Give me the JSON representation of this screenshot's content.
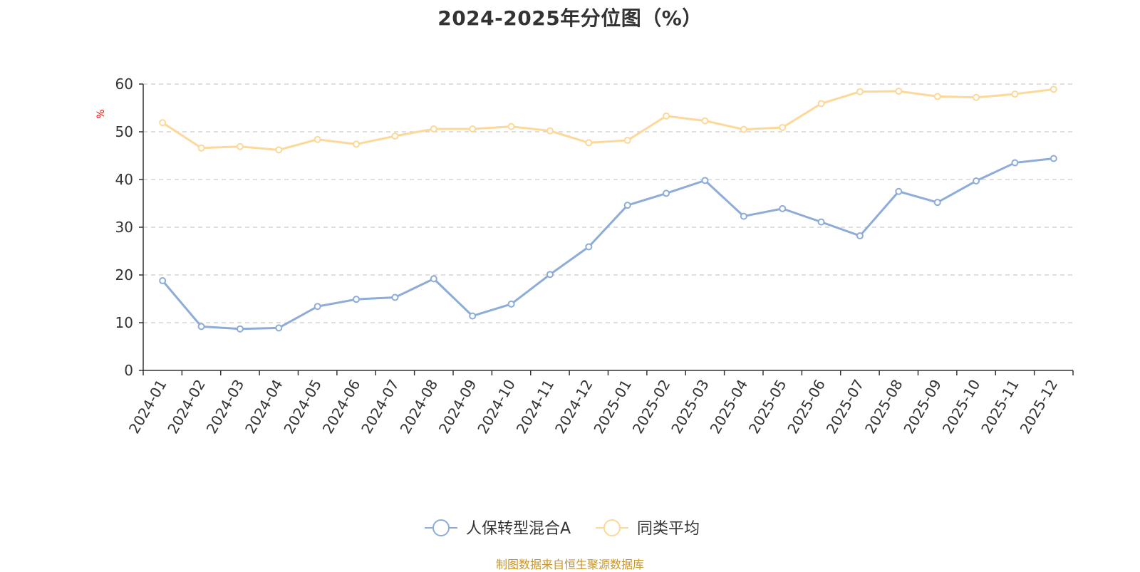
{
  "chart_data": {
    "type": "line",
    "title": "2024-2025年分位图（%）",
    "ylabel": "%",
    "xlabel": "",
    "ylim": [
      0,
      60
    ],
    "yticks": [
      0,
      10,
      20,
      30,
      40,
      50,
      60
    ],
    "grid": "horizontal dashed",
    "legend_position": "bottom-center",
    "categories": [
      "2024-01",
      "2024-02",
      "2024-03",
      "2024-04",
      "2024-05",
      "2024-06",
      "2024-07",
      "2024-08",
      "2024-09",
      "2024-10",
      "2024-11",
      "2024-12",
      "2025-01",
      "2025-02",
      "2025-03",
      "2025-04",
      "2025-05",
      "2025-06",
      "2025-07",
      "2025-08",
      "2025-09",
      "2025-10",
      "2025-11",
      "2025-12"
    ],
    "series": [
      {
        "name": "人保转型混合A",
        "color": "#8eacd8",
        "values": [
          18.8,
          9.2,
          8.7,
          8.9,
          13.4,
          14.9,
          15.3,
          19.2,
          11.4,
          13.9,
          20.1,
          25.9,
          34.6,
          37.1,
          39.8,
          32.3,
          33.9,
          31.1,
          28.2,
          37.5,
          35.2,
          39.7,
          43.5,
          44.4
        ]
      },
      {
        "name": "同类平均",
        "color": "#fcd899",
        "values": [
          51.9,
          46.6,
          46.9,
          46.2,
          48.4,
          47.4,
          49.1,
          50.6,
          50.6,
          51.1,
          50.2,
          47.7,
          48.2,
          53.3,
          52.3,
          50.5,
          50.9,
          55.9,
          58.4,
          58.5,
          57.4,
          57.2,
          57.9,
          58.9
        ]
      }
    ]
  },
  "source_note": "制图数据来自恒生聚源数据库"
}
